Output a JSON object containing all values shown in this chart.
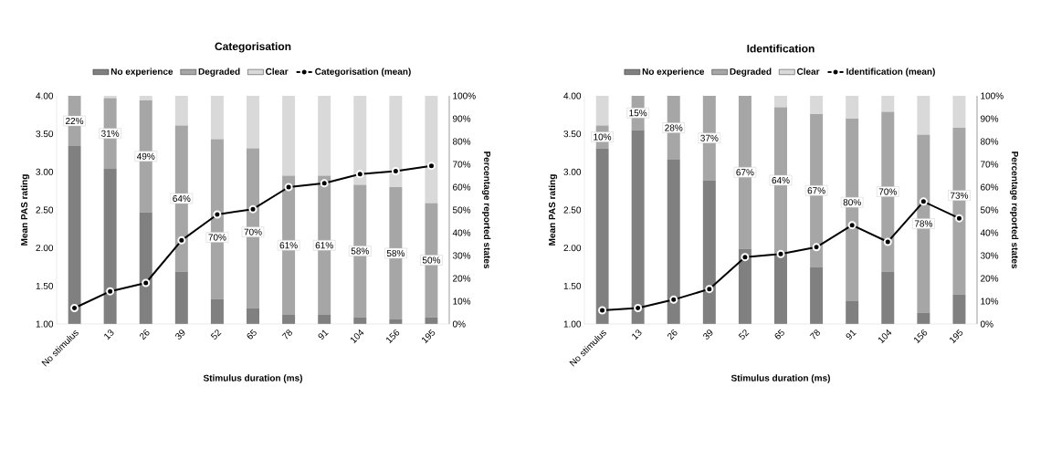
{
  "chart_data": [
    {
      "type": "bar",
      "title": "Categorisation",
      "xlabel": "Stimulus duration (ms)",
      "ylabel": "Mean PAS rating",
      "y2label": "Percentage reported states",
      "stacked": true,
      "legend": "top",
      "marker": "circle",
      "line_style": "solid",
      "categories": [
        "No stimulus",
        "13",
        "26",
        "39",
        "52",
        "65",
        "78",
        "91",
        "104",
        "156",
        "195"
      ],
      "series": [
        {
          "name": "No experience",
          "color": "#808080",
          "axis": "y2",
          "values": [
            78,
            68,
            49,
            23,
            11,
            7,
            4,
            4,
            3,
            2,
            3
          ]
        },
        {
          "name": "Degraded",
          "color": "#a6a6a6",
          "axis": "y2",
          "values": [
            22,
            31,
            49,
            64,
            70,
            70,
            61,
            61,
            58,
            58,
            50
          ],
          "value_labels": [
            "22%",
            "31%",
            "49%",
            "64%",
            "70%",
            "70%",
            "61%",
            "61%",
            "58%",
            "58%",
            "50%"
          ]
        },
        {
          "name": "Clear",
          "color": "#d9d9d9",
          "axis": "y2",
          "values": [
            0,
            1,
            2,
            13,
            19,
            23,
            35,
            35,
            39,
            40,
            47
          ]
        },
        {
          "name": "Categorisation (mean)",
          "type": "line",
          "color": "#000000",
          "values": [
            1.21,
            1.43,
            1.54,
            2.1,
            2.44,
            2.51,
            2.8,
            2.85,
            2.97,
            3.01,
            3.08
          ]
        }
      ],
      "ylim": [
        1,
        4
      ],
      "yticks": [
        {
          "value": 1,
          "label": "1.00"
        },
        {
          "value": 1.5,
          "label": "1.50"
        },
        {
          "value": 2,
          "label": "2.00"
        },
        {
          "value": 2.5,
          "label": "2.50"
        },
        {
          "value": 3,
          "label": "3.00"
        },
        {
          "value": 3.5,
          "label": "3.50"
        },
        {
          "value": 4,
          "label": "4.00"
        }
      ],
      "y2lim": [
        0,
        100
      ],
      "y2ticks": [
        {
          "value": 0,
          "label": "0%"
        },
        {
          "value": 10,
          "label": "10%"
        },
        {
          "value": 20,
          "label": "20%"
        },
        {
          "value": 30,
          "label": "30%"
        },
        {
          "value": 40,
          "label": "40%"
        },
        {
          "value": 50,
          "label": "50%"
        },
        {
          "value": 60,
          "label": "60%"
        },
        {
          "value": 70,
          "label": "70%"
        },
        {
          "value": 80,
          "label": "80%"
        },
        {
          "value": 90,
          "label": "90%"
        },
        {
          "value": 100,
          "label": "100%"
        }
      ]
    },
    {
      "type": "bar",
      "title": "Identification",
      "xlabel": "Stimulus duration (ms)",
      "ylabel": "Mean PAS rating",
      "y2label": "Percentage reported states",
      "stacked": true,
      "legend": "top",
      "marker": "circle",
      "line_style": "solid",
      "categories": [
        "No stimulus",
        "13",
        "26",
        "39",
        "52",
        "65",
        "78",
        "91",
        "104",
        "156",
        "195"
      ],
      "series": [
        {
          "name": "No experience",
          "color": "#808080",
          "axis": "y2",
          "values": [
            77,
            85,
            72,
            63,
            33,
            31,
            25,
            10,
            23,
            5,
            13
          ]
        },
        {
          "name": "Degraded",
          "color": "#a6a6a6",
          "axis": "y2",
          "values": [
            10,
            15,
            28,
            37,
            67,
            64,
            67,
            80,
            70,
            78,
            73
          ],
          "value_labels": [
            "10%",
            "15%",
            "28%",
            "37%",
            "67%",
            "64%",
            "67%",
            "80%",
            "70%",
            "78%",
            "73%"
          ]
        },
        {
          "name": "Clear",
          "color": "#d9d9d9",
          "axis": "y2",
          "values": [
            13,
            0,
            0,
            0,
            0,
            5,
            8,
            10,
            7,
            17,
            14
          ]
        },
        {
          "name": "Identification (mean)",
          "type": "line",
          "color": "#000000",
          "values": [
            1.18,
            1.21,
            1.32,
            1.46,
            1.88,
            1.92,
            2.01,
            2.3,
            2.08,
            2.61,
            2.39
          ]
        }
      ],
      "ylim": [
        1,
        4
      ],
      "yticks": [
        {
          "value": 1,
          "label": "1.00"
        },
        {
          "value": 1.5,
          "label": "1.50"
        },
        {
          "value": 2,
          "label": "2.00"
        },
        {
          "value": 2.5,
          "label": "2.50"
        },
        {
          "value": 3,
          "label": "3.00"
        },
        {
          "value": 3.5,
          "label": "3.50"
        },
        {
          "value": 4,
          "label": "4.00"
        }
      ],
      "y2lim": [
        0,
        100
      ],
      "y2ticks": [
        {
          "value": 0,
          "label": "0%"
        },
        {
          "value": 10,
          "label": "10%"
        },
        {
          "value": 20,
          "label": "20%"
        },
        {
          "value": 30,
          "label": "30%"
        },
        {
          "value": 40,
          "label": "40%"
        },
        {
          "value": 50,
          "label": "50%"
        },
        {
          "value": 60,
          "label": "60%"
        },
        {
          "value": 70,
          "label": "70%"
        },
        {
          "value": 80,
          "label": "80%"
        },
        {
          "value": 90,
          "label": "90%"
        },
        {
          "value": 100,
          "label": "100%"
        }
      ]
    }
  ]
}
